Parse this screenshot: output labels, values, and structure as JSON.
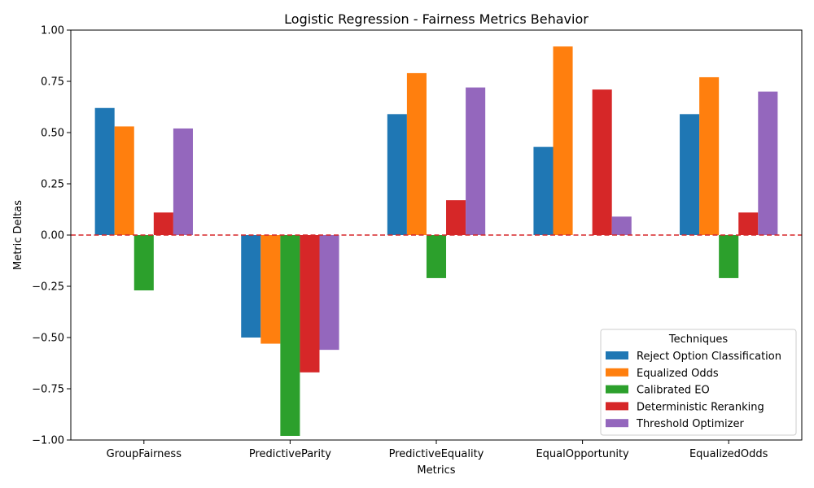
{
  "chart_data": {
    "type": "bar",
    "title": "Logistic Regression - Fairness Metrics Behavior",
    "xlabel": "Metrics",
    "ylabel": "Metric Deltas",
    "ylim": [
      -1.0,
      1.0
    ],
    "yticks": [
      "−1.00",
      "−0.75",
      "−0.50",
      "−0.25",
      "0.00",
      "0.25",
      "0.50",
      "0.75",
      "1.00"
    ],
    "ytick_values": [
      -1.0,
      -0.75,
      -0.5,
      -0.25,
      0.0,
      0.25,
      0.5,
      0.75,
      1.0
    ],
    "categories": [
      "GroupFairness",
      "PredictiveParity",
      "PredictiveEquality",
      "EqualOpportunity",
      "EqualizedOdds"
    ],
    "reference_line": {
      "y": 0.0,
      "color": "#d62728",
      "style": "dashed"
    },
    "legend": {
      "title": "Techniques",
      "placement": "lower-right"
    },
    "series": [
      {
        "name": "Reject Option Classification",
        "color": "#1f77b4",
        "values": [
          0.62,
          -0.5,
          0.59,
          0.43,
          0.59
        ]
      },
      {
        "name": "Equalized Odds",
        "color": "#ff7f0e",
        "values": [
          0.53,
          -0.53,
          0.79,
          0.92,
          0.77
        ]
      },
      {
        "name": "Calibrated EO",
        "color": "#2ca02c",
        "values": [
          -0.27,
          -0.98,
          -0.21,
          0.0,
          -0.21
        ]
      },
      {
        "name": "Deterministic Reranking",
        "color": "#d62728",
        "values": [
          0.11,
          -0.67,
          0.17,
          0.71,
          0.11
        ]
      },
      {
        "name": "Threshold Optimizer",
        "color": "#9467bd",
        "values": [
          0.52,
          -0.56,
          0.72,
          0.09,
          0.7
        ]
      }
    ]
  }
}
